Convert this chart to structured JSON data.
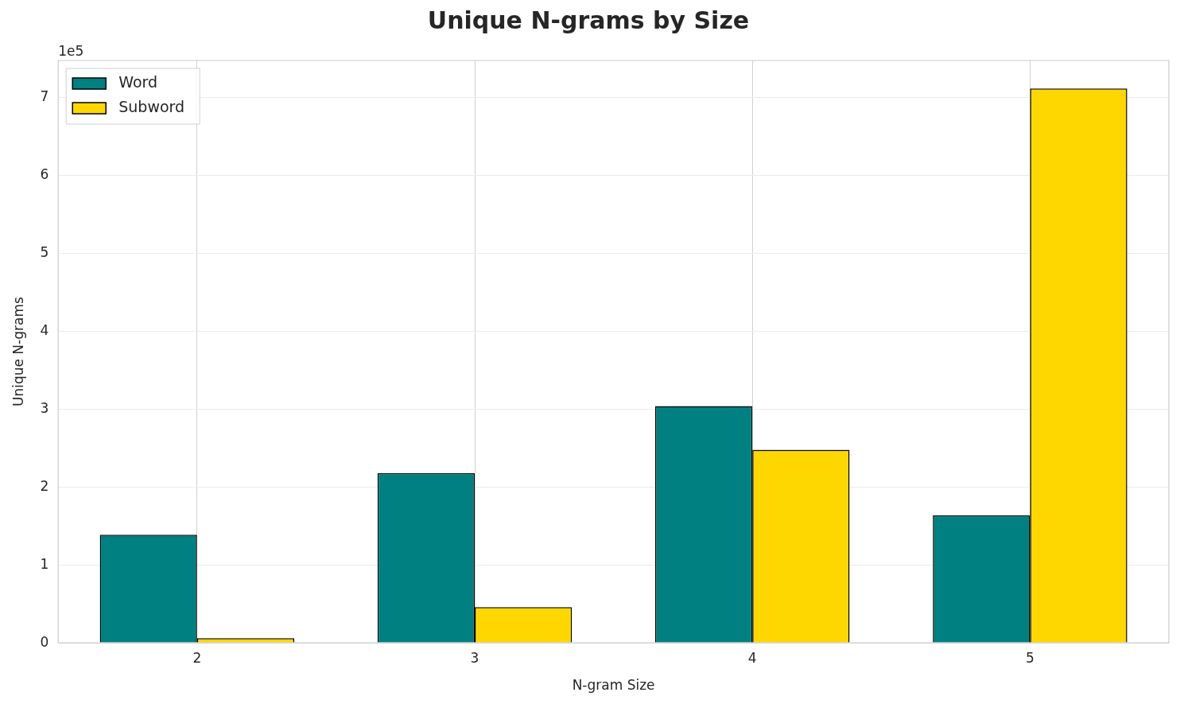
{
  "chart_data": {
    "type": "bar",
    "title": "Unique N-grams by Size",
    "xlabel": "N-gram Size",
    "ylabel": "Unique N-grams",
    "categories": [
      "2",
      "3",
      "4",
      "5"
    ],
    "series": [
      {
        "name": "Word",
        "color": "#008080",
        "values": [
          1.39,
          2.18,
          3.04,
          1.64
        ]
      },
      {
        "name": "Subword",
        "color": "#ffd700",
        "values": [
          0.06,
          0.46,
          2.48,
          7.12
        ]
      }
    ],
    "ylim": [
      0,
      7.48
    ],
    "yticks": [
      0,
      1,
      2,
      3,
      4,
      5,
      6,
      7
    ],
    "annotations": [
      "1e5"
    ],
    "grid": true,
    "legend": "top left"
  }
}
